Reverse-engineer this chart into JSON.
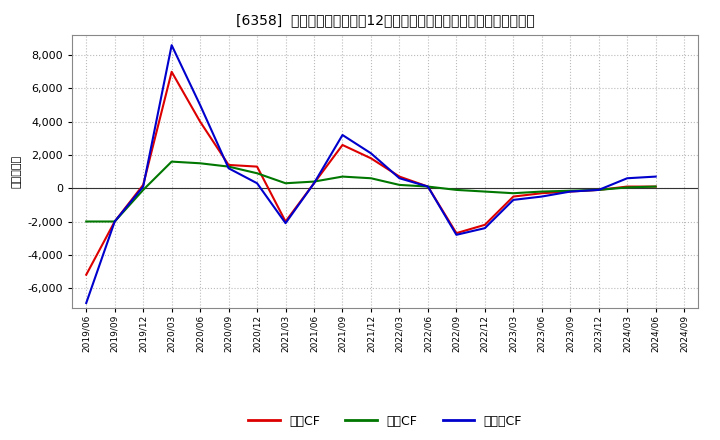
{
  "title": "[6358]  キャッシュフローの12か月移動合計の対前年同期増減額の推移",
  "ylabel": "（百万円）",
  "background_color": "#ffffff",
  "plot_bg_color": "#ffffff",
  "grid_color": "#aaaaaa",
  "ylim": [
    -7200,
    9200
  ],
  "yticks": [
    -6000,
    -4000,
    -2000,
    0,
    2000,
    4000,
    6000,
    8000
  ],
  "x_labels": [
    "2019/06",
    "2019/09",
    "2019/12",
    "2020/03",
    "2020/06",
    "2020/09",
    "2020/12",
    "2021/03",
    "2021/06",
    "2021/09",
    "2021/12",
    "2022/03",
    "2022/06",
    "2022/09",
    "2022/12",
    "2023/03",
    "2023/06",
    "2023/09",
    "2023/12",
    "2024/03",
    "2024/06",
    "2024/09"
  ],
  "series": {
    "営業CF": {
      "color": "#dd0000",
      "values": [
        -5200,
        -2000,
        200,
        7000,
        4000,
        1400,
        1300,
        -2000,
        300,
        2600,
        1800,
        700,
        100,
        -2700,
        -2200,
        -500,
        -300,
        -200,
        -100,
        100,
        100,
        null
      ]
    },
    "投資CF": {
      "color": "#007700",
      "values": [
        -2000,
        -2000,
        -100,
        1600,
        1500,
        1300,
        900,
        300,
        400,
        700,
        600,
        200,
        100,
        -100,
        -200,
        -300,
        -200,
        -150,
        -100,
        50,
        100,
        null
      ]
    },
    "フリーCF": {
      "color": "#0000cc",
      "values": [
        -6900,
        -2000,
        100,
        8600,
        5000,
        1200,
        300,
        -2100,
        300,
        3200,
        2100,
        600,
        100,
        -2800,
        -2400,
        -700,
        -500,
        -200,
        -100,
        600,
        700,
        null
      ]
    }
  },
  "legend_labels": [
    "営業CF",
    "投資CF",
    "フリーCF"
  ],
  "legend_colors": [
    "#dd0000",
    "#007700",
    "#0000cc"
  ]
}
